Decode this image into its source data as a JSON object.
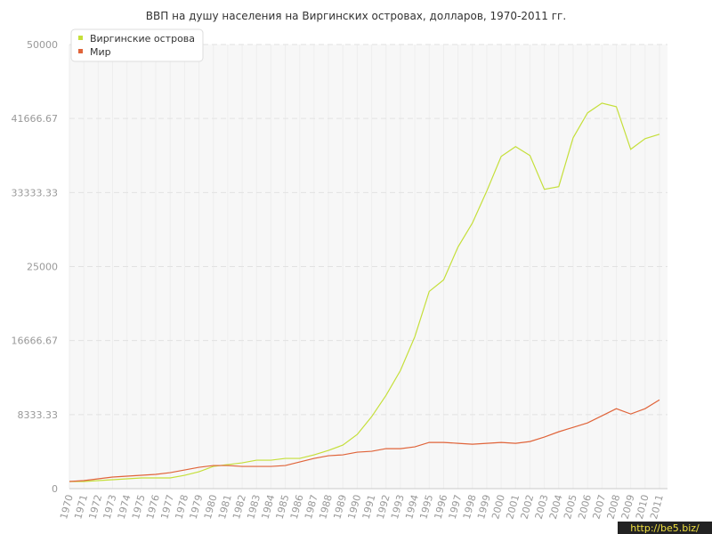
{
  "chart_data": {
    "type": "line",
    "title": "ВВП на душу населения на Виргинских островах, долларов, 1970-2011 гг.",
    "categories": [
      "1970",
      "1971",
      "1972",
      "1973",
      "1974",
      "1975",
      "1976",
      "1977",
      "1978",
      "1979",
      "1980",
      "1981",
      "1982",
      "1983",
      "1984",
      "1985",
      "1986",
      "1987",
      "1988",
      "1989",
      "1990",
      "1991",
      "1992",
      "1993",
      "1994",
      "1995",
      "1996",
      "1997",
      "1998",
      "1999",
      "2000",
      "2001",
      "2002",
      "2003",
      "2004",
      "2005",
      "2006",
      "2007",
      "2008",
      "2009",
      "2010",
      "2011"
    ],
    "series": [
      {
        "name": "Виргинские острова",
        "color": "#c5df3a",
        "values": [
          800,
          800,
          900,
          1000,
          1100,
          1200,
          1200,
          1200,
          1500,
          1900,
          2500,
          2700,
          2900,
          3200,
          3200,
          3400,
          3400,
          3800,
          4300,
          4900,
          6100,
          8100,
          10500,
          13300,
          17100,
          22200,
          23500,
          27200,
          29900,
          33500,
          37400,
          38500,
          37500,
          33700,
          34000,
          39500,
          42300,
          43400,
          43000,
          38200,
          39400,
          39900
        ]
      },
      {
        "name": "Мир",
        "color": "#e0643a",
        "values": [
          800,
          900,
          1100,
          1300,
          1400,
          1500,
          1600,
          1800,
          2100,
          2400,
          2600,
          2600,
          2500,
          2500,
          2500,
          2600,
          3000,
          3400,
          3700,
          3800,
          4100,
          4200,
          4500,
          4500,
          4700,
          5200,
          5200,
          5100,
          5000,
          5100,
          5200,
          5100,
          5300,
          5800,
          6400,
          6900,
          7400,
          8200,
          9000,
          8400,
          9000,
          10000
        ]
      }
    ],
    "ylim": [
      0,
      50000
    ],
    "yticks": [
      0,
      8333.33,
      16666.67,
      25000,
      33333.33,
      41666.67,
      50000
    ],
    "grid": true,
    "legend": "top-left",
    "watermark": "http://be5.biz/"
  }
}
